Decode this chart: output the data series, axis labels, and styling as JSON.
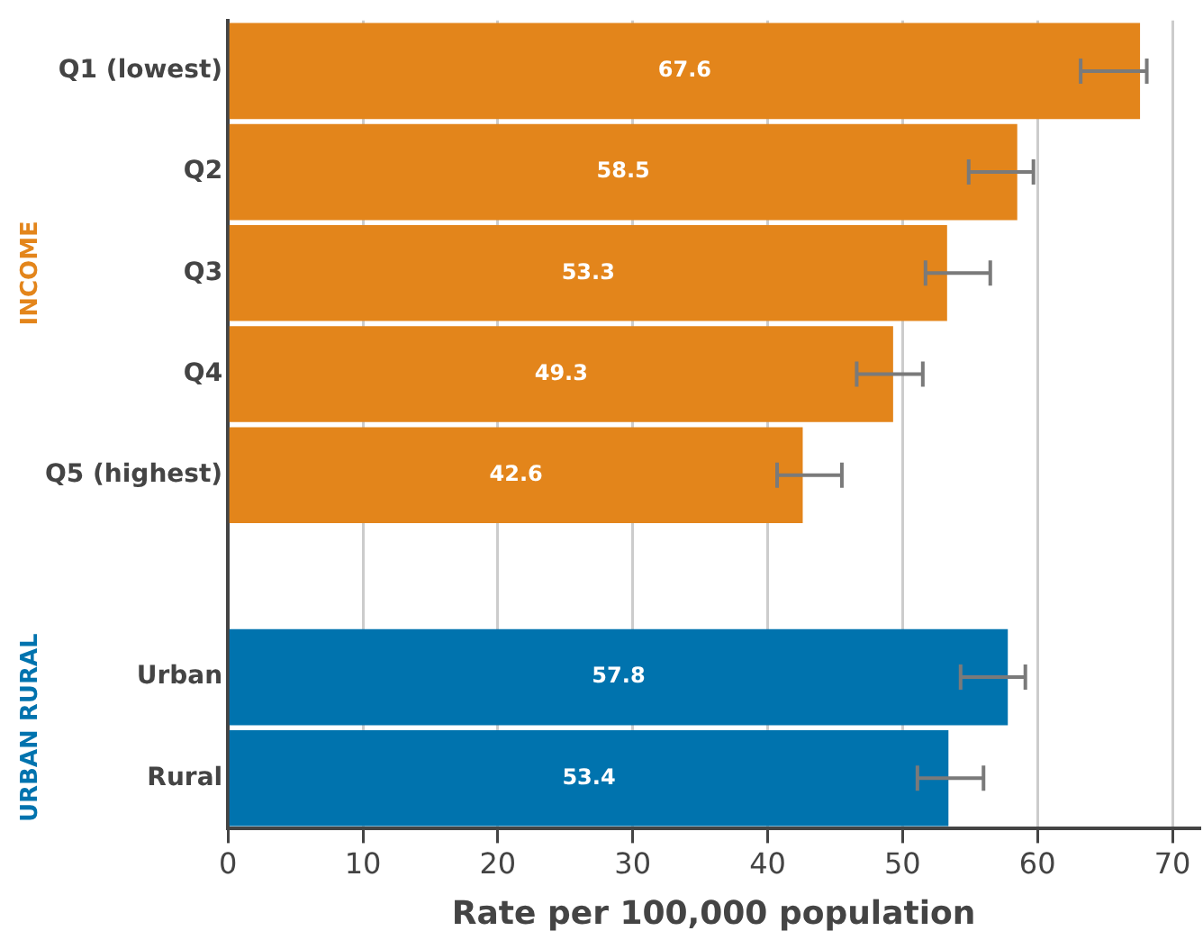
{
  "chart_data": {
    "type": "bar",
    "orientation": "horizontal",
    "xlabel": "Rate per 100,000 population",
    "categories": [
      "Q1 (lowest)",
      "Q2",
      "Q3",
      "Q4",
      "Q5 (highest)",
      null,
      "Urban",
      "Rural"
    ],
    "values": [
      67.6,
      58.5,
      53.3,
      49.3,
      42.6,
      null,
      57.8,
      53.4
    ],
    "colors": [
      "#e3851b",
      "#e3851b",
      "#e3851b",
      "#e3851b",
      "#e3851b",
      "#e3851b",
      "#0073ae",
      "#0073ae"
    ],
    "errors": [
      [
        63.2,
        68.1
      ],
      [
        54.9,
        59.7
      ],
      [
        51.7,
        56.5
      ],
      [
        46.6,
        51.5
      ],
      [
        40.7,
        45.5
      ],
      null,
      [
        54.3,
        59.1
      ],
      [
        51.1,
        56.0
      ]
    ],
    "data_labels": true,
    "annotations": [
      "INCOME",
      "URBAN RURAL"
    ],
    "xlim": [
      0,
      72
    ],
    "xticks": [
      0,
      10,
      20,
      30,
      40,
      50,
      60,
      70
    ],
    "grid": "x",
    "legend": false
  }
}
